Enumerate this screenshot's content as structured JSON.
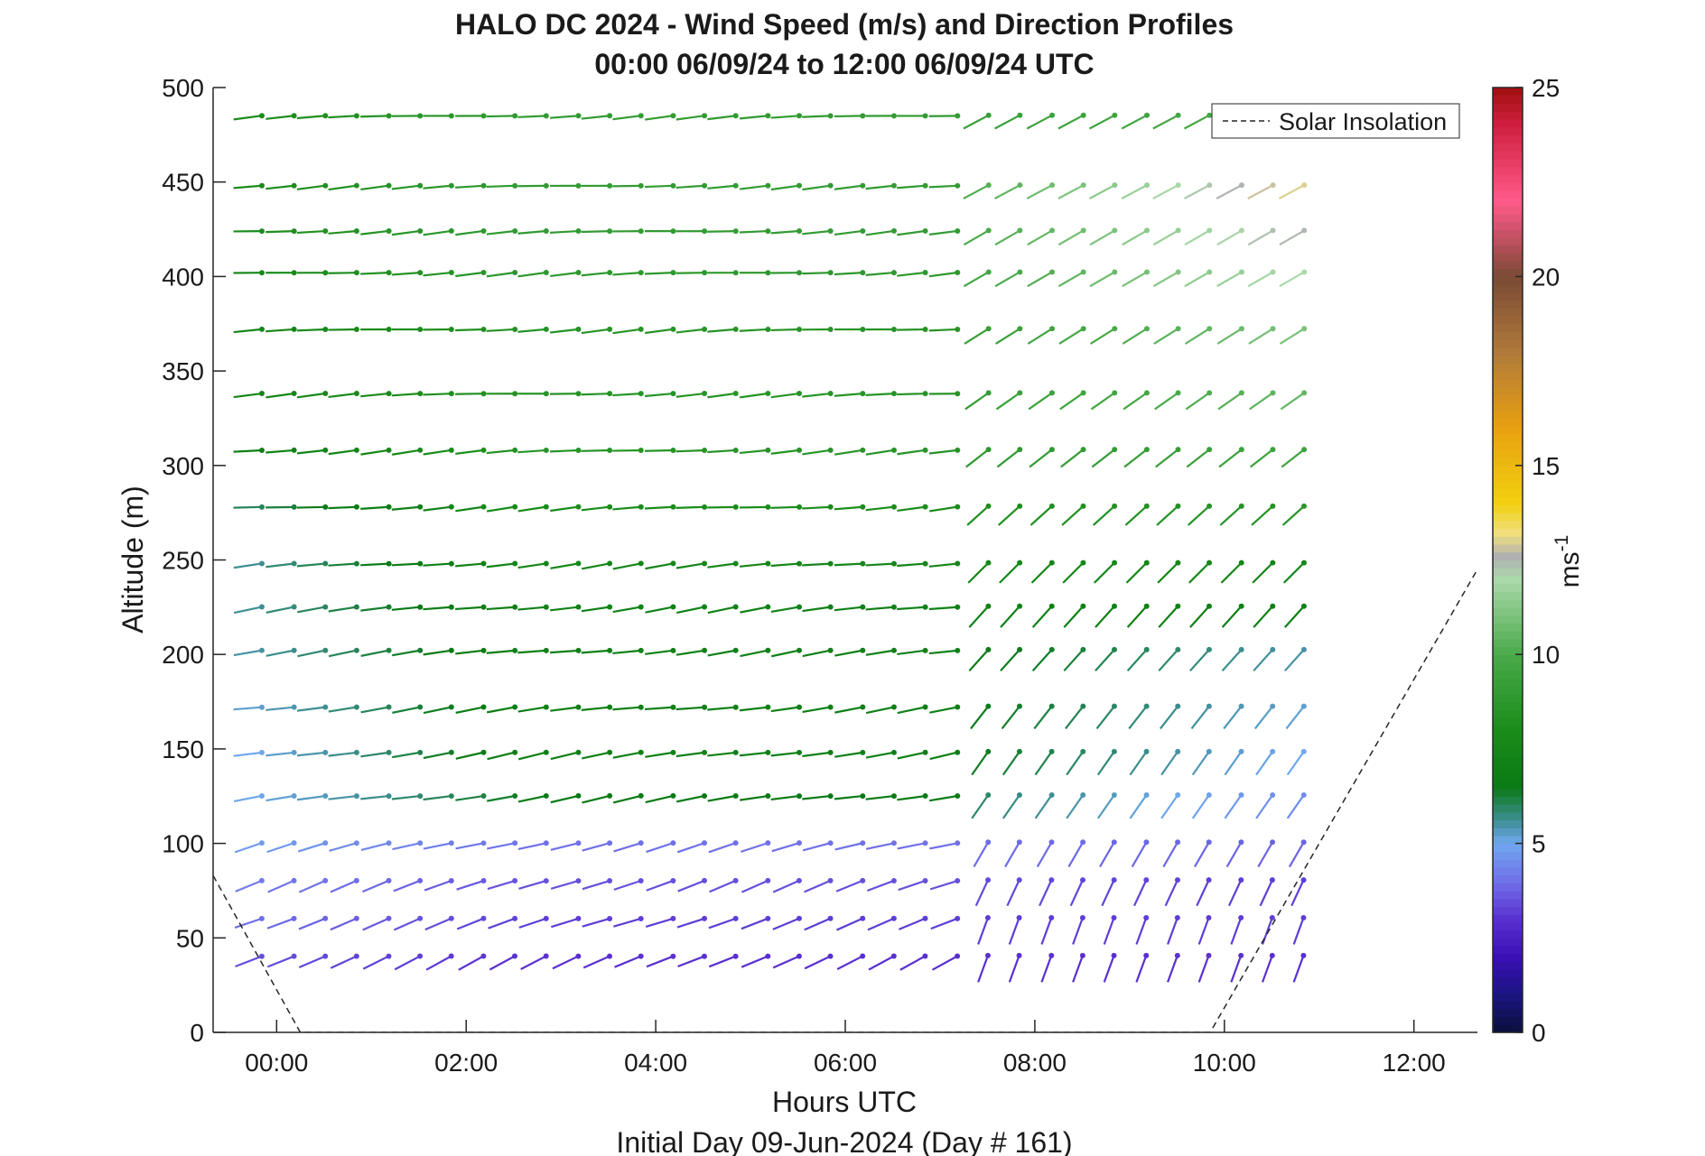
{
  "chart_data": {
    "type": "wind-barb-profile",
    "title": "HALO DC 2024 - Wind Speed (m/s) and Direction Profiles",
    "subtitle": "00:00 06/09/24 to 12:00 06/09/24  UTC",
    "xlabel": "Hours UTC",
    "xlabel2": "Initial Day 09-Jun-2024 (Day # 161)",
    "ylabel": "Altitude (m)",
    "xlim": [
      -0.67,
      12.67
    ],
    "ylim": [
      0,
      500
    ],
    "x_ticks": [
      {
        "value": 0,
        "label": "00:00"
      },
      {
        "value": 2,
        "label": "02:00"
      },
      {
        "value": 4,
        "label": "04:00"
      },
      {
        "value": 6,
        "label": "06:00"
      },
      {
        "value": 8,
        "label": "08:00"
      },
      {
        "value": 10,
        "label": "10:00"
      },
      {
        "value": 12,
        "label": "12:00"
      }
    ],
    "y_ticks": [
      0,
      50,
      100,
      150,
      200,
      250,
      300,
      350,
      400,
      450,
      500
    ],
    "colorbar": {
      "label": "ms-1",
      "unit_base": "ms",
      "unit_exp": "-1",
      "range": [
        0,
        25
      ],
      "ticks": [
        0,
        5,
        10,
        15,
        20,
        25
      ],
      "stops": [
        {
          "v": 0,
          "c": "#0a0f3c"
        },
        {
          "v": 1,
          "c": "#1a1580"
        },
        {
          "v": 2,
          "c": "#3a10b5"
        },
        {
          "v": 3,
          "c": "#5a30d0"
        },
        {
          "v": 4,
          "c": "#7070e8"
        },
        {
          "v": 5,
          "c": "#70a8f0"
        },
        {
          "v": 5.6,
          "c": "#3f8f96"
        },
        {
          "v": 6.5,
          "c": "#0a7a14"
        },
        {
          "v": 8,
          "c": "#1a8c1a"
        },
        {
          "v": 10,
          "c": "#4aaa4a"
        },
        {
          "v": 12,
          "c": "#aad8aa"
        },
        {
          "v": 12.6,
          "c": "#b0b0b0"
        },
        {
          "v": 13.2,
          "c": "#f0e080"
        },
        {
          "v": 14,
          "c": "#f2d010"
        },
        {
          "v": 16,
          "c": "#e8a010"
        },
        {
          "v": 18,
          "c": "#b07a3a"
        },
        {
          "v": 20,
          "c": "#7a4a35"
        },
        {
          "v": 21,
          "c": "#c05060"
        },
        {
          "v": 22,
          "c": "#ff5a8a"
        },
        {
          "v": 24,
          "c": "#d02040"
        },
        {
          "v": 25,
          "c": "#a01010"
        }
      ]
    },
    "legend": {
      "entries": [
        "Solar Insolation"
      ],
      "position": "top-right"
    },
    "solar_insolation": {
      "style": "dashed",
      "x": [
        -0.67,
        0.25,
        9.85,
        12.67
      ],
      "y": [
        83,
        0,
        0,
        245
      ]
    },
    "altitudes": [
      40,
      60,
      80,
      100,
      125,
      148,
      172,
      202,
      225,
      248,
      278,
      308,
      338,
      372,
      402,
      424,
      448,
      485
    ],
    "times": [
      -0.17,
      0.17,
      0.5,
      0.83,
      1.17,
      1.5,
      1.83,
      2.17,
      2.5,
      2.83,
      3.17,
      3.5,
      3.83,
      4.17,
      4.5,
      4.83,
      5.17,
      5.5,
      5.83,
      6.17,
      6.5,
      6.83,
      7.17,
      7.5,
      7.83,
      8.17,
      8.5,
      8.83,
      9.17,
      9.5,
      9.83,
      10.17,
      10.5,
      10.83
    ],
    "series_note": "Each barb segment points toward wind direction; color encodes wind speed (m/s). Values estimated from the figure.",
    "regimes": [
      {
        "alt": 40,
        "speed_start": 3.5,
        "speed_mid": 3.0,
        "speed_end": 3.0,
        "dir_start": 245,
        "dir_end": 200,
        "transition": 7.5
      },
      {
        "alt": 60,
        "speed_start": 4.0,
        "speed_mid": 3.2,
        "speed_end": 3.2,
        "dir_start": 250,
        "dir_end": 200,
        "transition": 7.5
      },
      {
        "alt": 80,
        "speed_start": 4.2,
        "speed_mid": 3.5,
        "speed_end": 3.2,
        "dir_start": 250,
        "dir_end": 205,
        "transition": 7.5
      },
      {
        "alt": 100,
        "speed_start": 4.8,
        "speed_mid": 4.0,
        "speed_end": 3.8,
        "dir_start": 255,
        "dir_end": 210,
        "transition": 7.5
      },
      {
        "alt": 125,
        "speed_start": 5.0,
        "speed_mid": 6.5,
        "speed_end": 4.5,
        "dir_start": 260,
        "dir_end": 215,
        "transition": 7.5
      },
      {
        "alt": 148,
        "speed_start": 5.0,
        "speed_mid": 7.0,
        "speed_end": 5.0,
        "dir_start": 260,
        "dir_end": 215,
        "transition": 7.5
      },
      {
        "alt": 172,
        "speed_start": 5.2,
        "speed_mid": 7.0,
        "speed_end": 5.2,
        "dir_start": 262,
        "dir_end": 218,
        "transition": 7.5
      },
      {
        "alt": 202,
        "speed_start": 5.5,
        "speed_mid": 7.0,
        "speed_end": 5.5,
        "dir_start": 262,
        "dir_end": 222,
        "transition": 7.5
      },
      {
        "alt": 225,
        "speed_start": 5.6,
        "speed_mid": 7.2,
        "speed_end": 7.0,
        "dir_start": 262,
        "dir_end": 222,
        "transition": 7.5
      },
      {
        "alt": 248,
        "speed_start": 5.6,
        "speed_mid": 7.5,
        "speed_end": 7.5,
        "dir_start": 263,
        "dir_end": 225,
        "transition": 7.5
      },
      {
        "alt": 278,
        "speed_start": 6.0,
        "speed_mid": 8.0,
        "speed_end": 8.5,
        "dir_start": 265,
        "dir_end": 228,
        "transition": 7.5
      },
      {
        "alt": 308,
        "speed_start": 7.0,
        "speed_mid": 8.5,
        "speed_end": 9.5,
        "dir_start": 265,
        "dir_end": 232,
        "transition": 7.5
      },
      {
        "alt": 338,
        "speed_start": 7.5,
        "speed_mid": 8.5,
        "speed_end": 10.5,
        "dir_start": 266,
        "dir_end": 235,
        "transition": 7.5
      },
      {
        "alt": 372,
        "speed_start": 7.5,
        "speed_mid": 8.5,
        "speed_end": 11.0,
        "dir_start": 266,
        "dir_end": 238,
        "transition": 7.5
      },
      {
        "alt": 402,
        "speed_start": 7.8,
        "speed_mid": 8.8,
        "speed_end": 12.0,
        "dir_start": 266,
        "dir_end": 240,
        "transition": 7.5
      },
      {
        "alt": 424,
        "speed_start": 8.0,
        "speed_mid": 9.0,
        "speed_end": 12.5,
        "dir_start": 266,
        "dir_end": 240,
        "transition": 7.5
      },
      {
        "alt": 448,
        "speed_start": 8.0,
        "speed_mid": 9.0,
        "speed_end": 13.0,
        "dir_start": 266,
        "dir_end": 242,
        "transition": 7.5
      },
      {
        "alt": 485,
        "speed_start": 8.0,
        "speed_mid": 9.0,
        "speed_end": 10.0,
        "dir_start": 266,
        "dir_end": 242,
        "transition": 7.5
      }
    ]
  }
}
